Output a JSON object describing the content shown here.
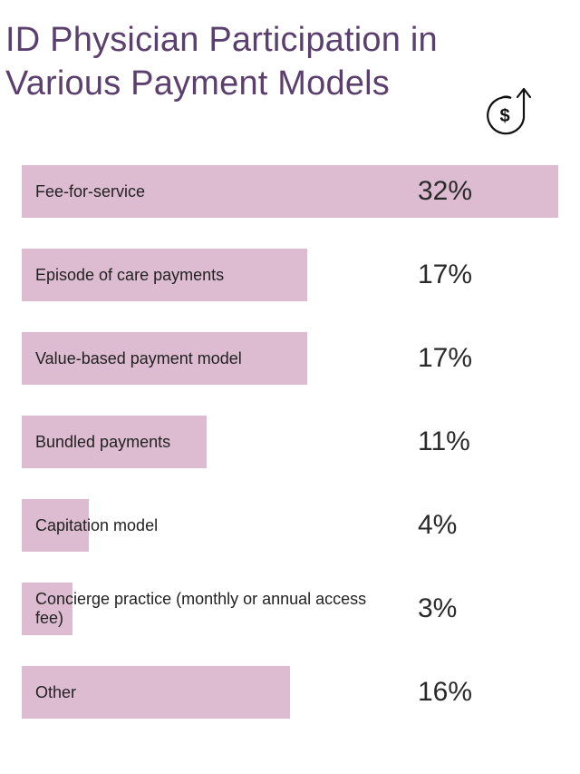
{
  "title": "ID Physician Participation in Various Payment Models",
  "icon": "dollar-circle-arrow-up-icon",
  "colors": {
    "title": "#5b3f6e",
    "bar": "#ddbcd2",
    "text": "#222222"
  },
  "chart_data": {
    "type": "bar",
    "orientation": "horizontal",
    "title": "ID Physician Participation in Various Payment Models",
    "categories": [
      "Fee-for-service",
      "Episode of care payments",
      "Value-based payment model",
      "Bundled payments",
      "Capitation model",
      "Concierge practice (monthly or annual access fee)",
      "Other"
    ],
    "values": [
      32,
      17,
      17,
      11,
      4,
      3,
      16
    ],
    "labels": [
      "32%",
      "17%",
      "17%",
      "11%",
      "4%",
      "3%",
      "16%"
    ],
    "unit": "%",
    "grid": false
  }
}
